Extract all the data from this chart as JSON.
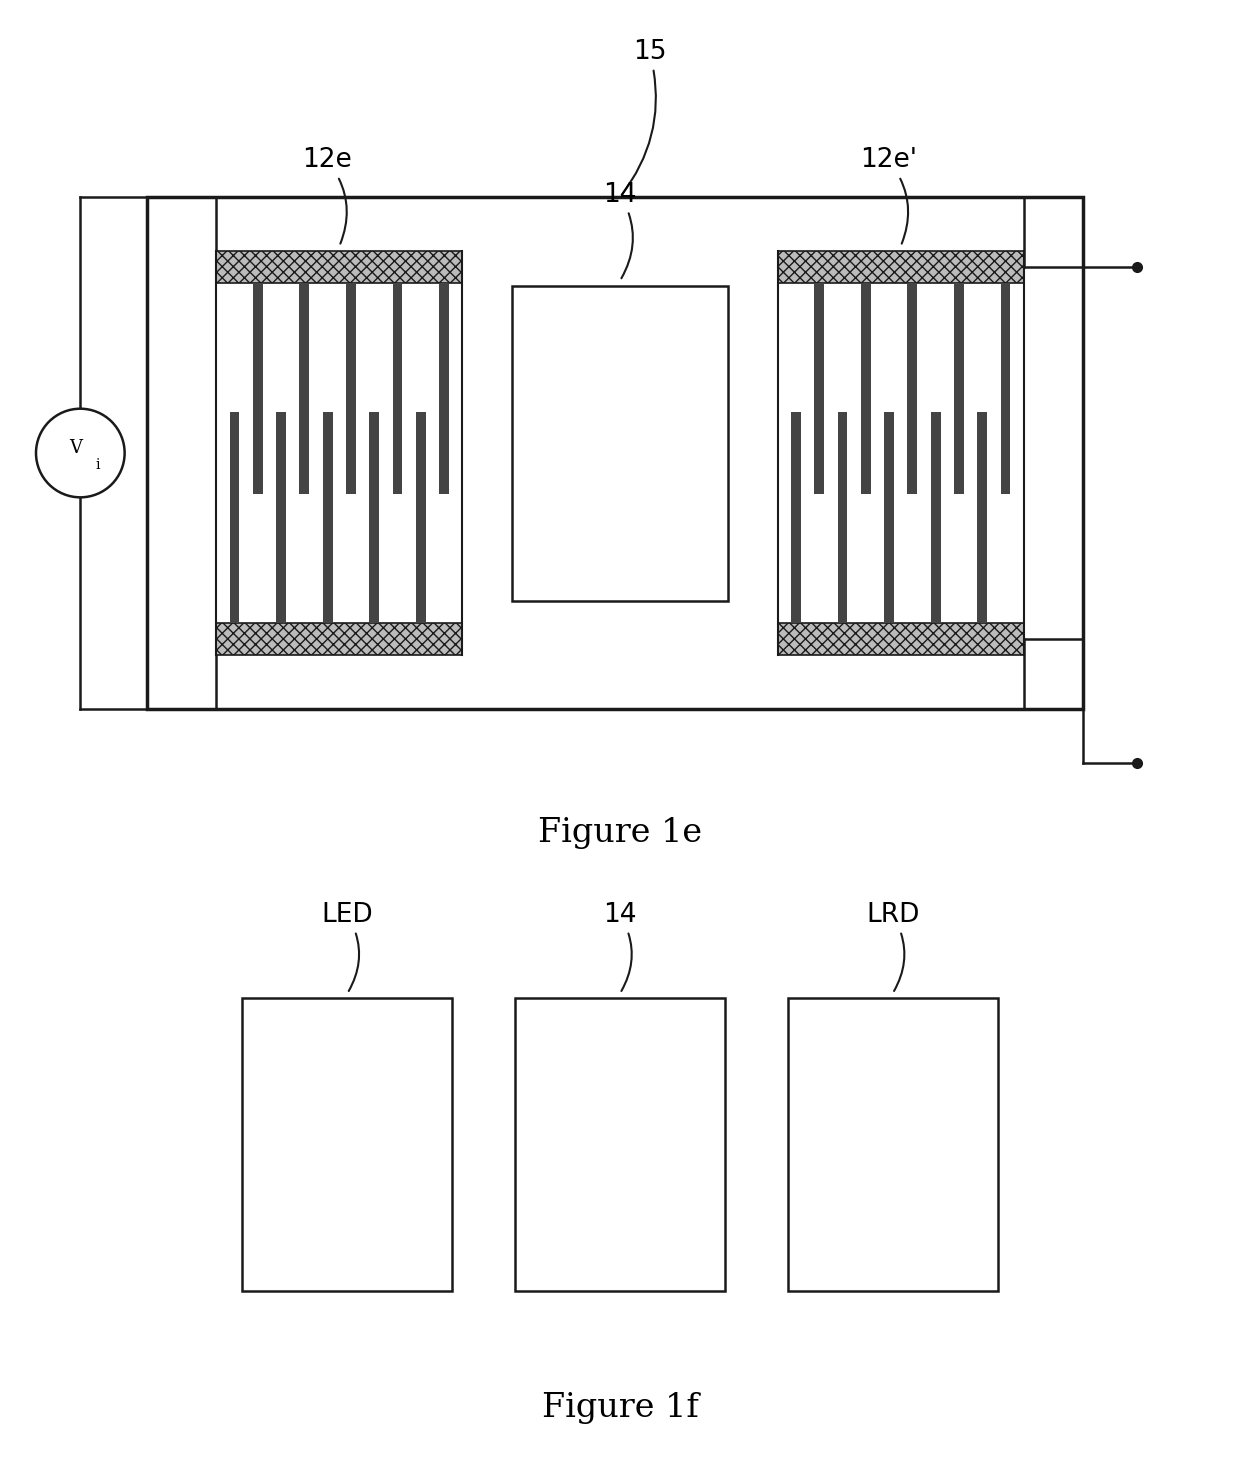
{
  "bg_color": "#ffffff",
  "line_color": "#1a1a1a",
  "fig1e_title": "Figure 1e",
  "fig1f_title": "Figure 1f",
  "label_15": "15",
  "label_12e": "12e",
  "label_14": "14",
  "label_12e_prime": "12e'",
  "label_Vi": "V",
  "label_Vi_sub": "i",
  "label_LED": "LED",
  "label_14b": "14",
  "label_LRD": "LRD",
  "title_fontsize": 24,
  "label_fontsize": 19,
  "finger_color": "#444444",
  "hatch_face_color": "#bbbbbb",
  "outer_lw": 2.5,
  "inner_lw": 1.8
}
